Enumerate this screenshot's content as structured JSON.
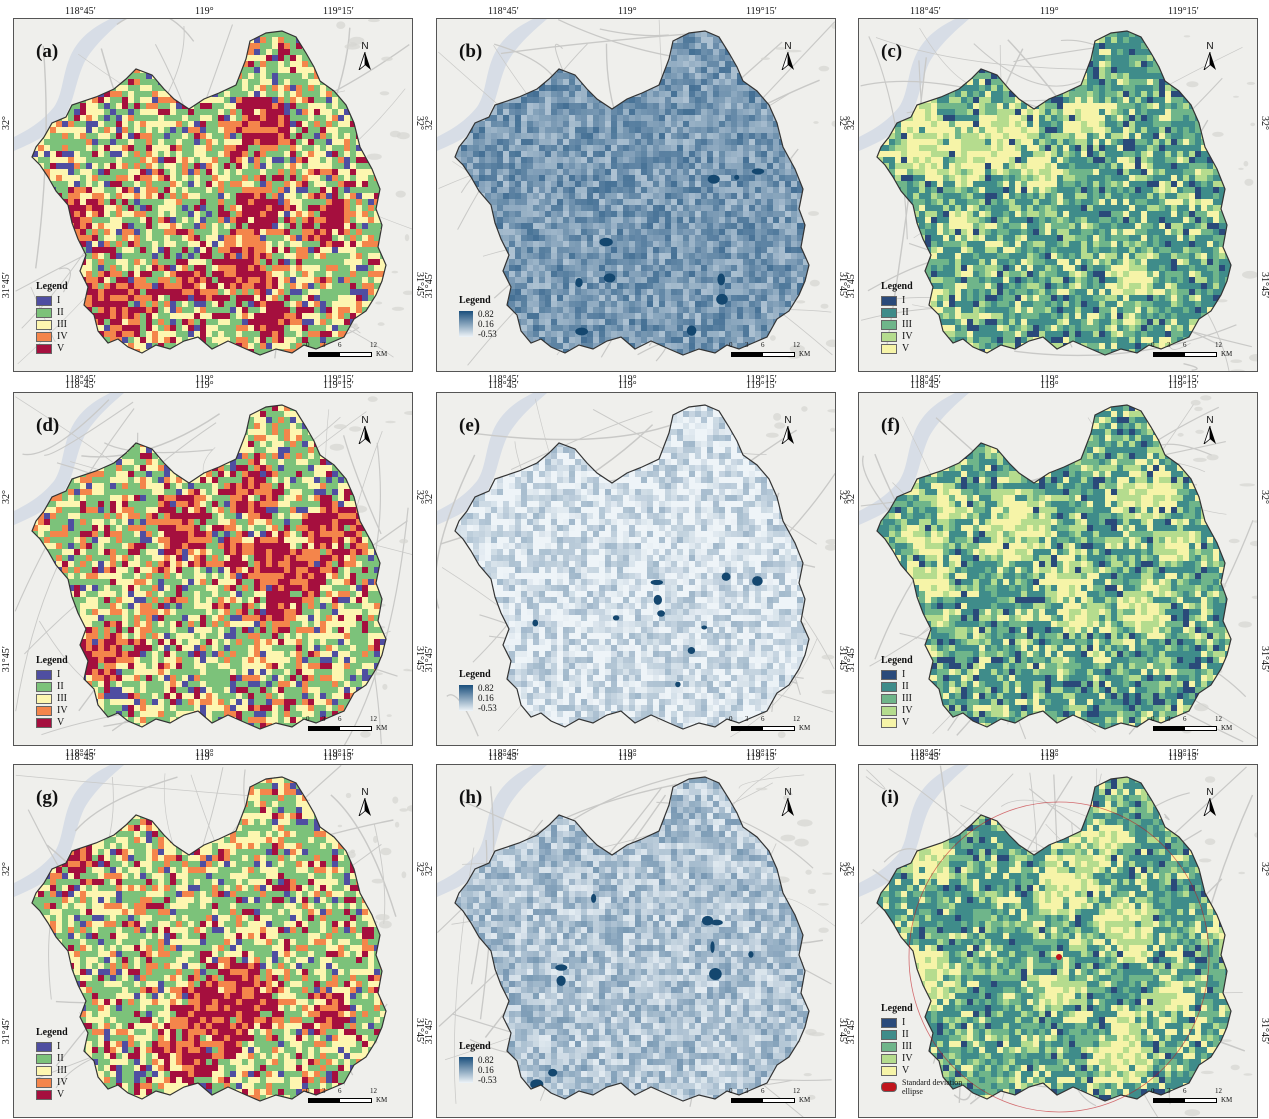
{
  "coords": {
    "lon": [
      "118°45′",
      "119°",
      "119°15′"
    ],
    "lat": [
      "32°",
      "31°45′"
    ]
  },
  "north_label": "N",
  "scale": {
    "ticks": [
      "0",
      "3",
      "6",
      "12"
    ],
    "unit": "KM"
  },
  "legend_title": "Legend",
  "panels": [
    {
      "label": "(a)",
      "type": "class",
      "scheme": "spectral",
      "legend": [
        "I",
        "II",
        "III",
        "IV",
        "V"
      ],
      "colors": [
        "#4f4ea1",
        "#7cc27a",
        "#fdf6b0",
        "#f4854b",
        "#a50f3e"
      ]
    },
    {
      "label": "(b)",
      "type": "continuous",
      "scheme": "blue-dark",
      "legend_values": [
        "0.82",
        "0.16",
        "-0.53"
      ],
      "colors": [
        "#1a4f7c",
        "#eef4f8"
      ]
    },
    {
      "label": "(c)",
      "type": "class",
      "scheme": "green",
      "legend": [
        "I",
        "II",
        "III",
        "IV",
        "V"
      ],
      "colors": [
        "#2a4a7a",
        "#3f8c8a",
        "#6fb58a",
        "#b5dc8e",
        "#f6f4a8"
      ]
    },
    {
      "label": "(d)",
      "type": "class",
      "scheme": "spectral",
      "legend": [
        "I",
        "II",
        "III",
        "IV",
        "V"
      ],
      "colors": [
        "#4f4ea1",
        "#7cc27a",
        "#fdf6b0",
        "#f4854b",
        "#a50f3e"
      ]
    },
    {
      "label": "(e)",
      "type": "continuous",
      "scheme": "blue-light",
      "legend_values": [
        "0.82",
        "0.16",
        "-0.53"
      ],
      "colors": [
        "#1a4f7c",
        "#eef4f8"
      ]
    },
    {
      "label": "(f)",
      "type": "class",
      "scheme": "green",
      "legend": [
        "I",
        "II",
        "III",
        "IV",
        "V"
      ],
      "colors": [
        "#2a4a7a",
        "#3f8c8a",
        "#6fb58a",
        "#b5dc8e",
        "#f6f4a8"
      ]
    },
    {
      "label": "(g)",
      "type": "class",
      "scheme": "spectral",
      "legend": [
        "I",
        "II",
        "III",
        "IV",
        "V"
      ],
      "colors": [
        "#4f4ea1",
        "#7cc27a",
        "#fdf6b0",
        "#f4854b",
        "#a50f3e"
      ]
    },
    {
      "label": "(h)",
      "type": "continuous",
      "scheme": "blue-mid",
      "legend_values": [
        "0.82",
        "0.16",
        "-0.53"
      ],
      "colors": [
        "#1a4f7c",
        "#eef4f8"
      ]
    },
    {
      "label": "(i)",
      "type": "class",
      "scheme": "green",
      "legend": [
        "I",
        "II",
        "III",
        "IV",
        "V"
      ],
      "colors": [
        "#2a4a7a",
        "#3f8c8a",
        "#6fb58a",
        "#b5dc8e",
        "#f6f4a8"
      ],
      "extra_legend": "Standard deviation ellipse",
      "extra_color": "#c0141c"
    }
  ]
}
